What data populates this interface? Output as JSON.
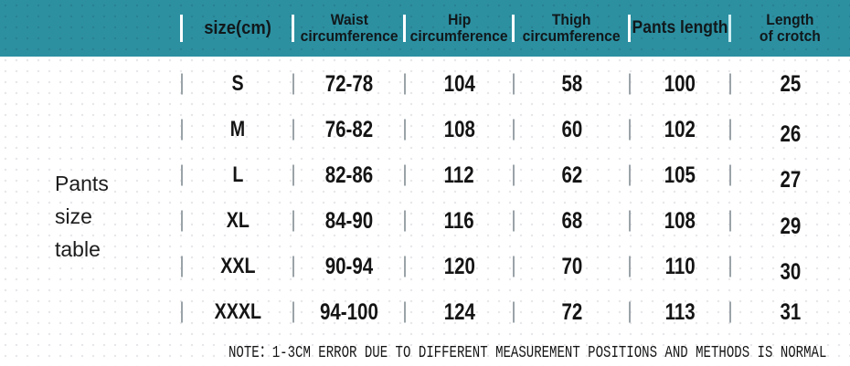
{
  "caption": "Pants\nsize\ntable",
  "table": {
    "columns": {
      "size": {
        "line1": "size(cm)"
      },
      "waist": {
        "line1": "Waist",
        "line2": "circumference"
      },
      "hip": {
        "line1": "Hip",
        "line2": "circumference"
      },
      "thigh": {
        "line1": "Thigh",
        "line2": "circumference"
      },
      "pants": {
        "line1": "Pants length"
      },
      "crotch": {
        "line1": "Length",
        "line2": "of crotch"
      }
    },
    "rows": [
      {
        "size": "S",
        "waist": "72-78",
        "hip": "104",
        "thigh": "58",
        "pants": "100",
        "crotch": "25"
      },
      {
        "size": "M",
        "waist": "76-82",
        "hip": "108",
        "thigh": "60",
        "pants": "102",
        "crotch": "26"
      },
      {
        "size": "L",
        "waist": "82-86",
        "hip": "112",
        "thigh": "62",
        "pants": "105",
        "crotch": "27"
      },
      {
        "size": "XL",
        "waist": "84-90",
        "hip": "116",
        "thigh": "68",
        "pants": "108",
        "crotch": "29"
      },
      {
        "size": "XXL",
        "waist": "90-94",
        "hip": "120",
        "thigh": "70",
        "pants": "110",
        "crotch": "30"
      },
      {
        "size": "XXXL",
        "waist": "94-100",
        "hip": "124",
        "thigh": "72",
        "pants": "113",
        "crotch": "31"
      }
    ],
    "note": "NOTE：1-3CM ERROR DUE TO DIFFERENT MEASUREMENT POSITIONS AND METHODS IS NORMAL"
  },
  "colors": {
    "header_bg": "#2C90A1",
    "header_divider": "#FFFFFF",
    "header_divider_last": "#CDEEF2",
    "divider_gray": "#9AA3A8",
    "body_text": "#141414",
    "header_text": "#11181B",
    "note_color": "#161616",
    "page_bg": "#FFFFFF"
  }
}
